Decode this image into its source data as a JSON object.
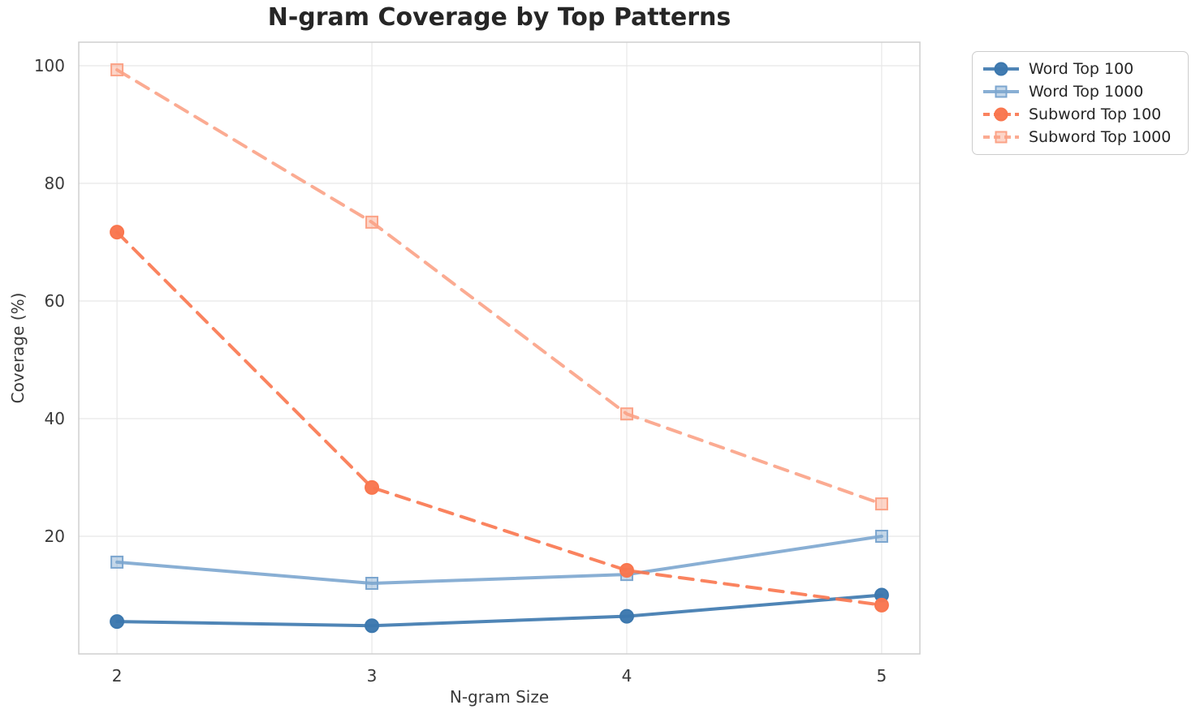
{
  "chart_data": {
    "type": "line",
    "title": "N-gram Coverage by Top Patterns",
    "xlabel": "N-gram Size",
    "ylabel": "Coverage (%)",
    "x": [
      2,
      3,
      4,
      5
    ],
    "x_tick_labels": [
      "2",
      "3",
      "4",
      "5"
    ],
    "y_ticks": [
      20,
      40,
      60,
      80,
      100
    ],
    "y_tick_labels": [
      "20",
      "40",
      "60",
      "80",
      "100"
    ],
    "xlim": [
      1.85,
      5.15
    ],
    "ylim": [
      0,
      104
    ],
    "grid": true,
    "legend_position": "outside-upper-right",
    "series": [
      {
        "name": "Word Top 100",
        "color": "#3C78AE",
        "marker": "circle",
        "linestyle": "solid",
        "values": [
          5.5,
          4.8,
          6.4,
          10.0
        ]
      },
      {
        "name": "Word Top 1000",
        "color": "#7CA6CF",
        "marker": "square",
        "linestyle": "solid",
        "values": [
          15.6,
          12.0,
          13.5,
          20.0
        ]
      },
      {
        "name": "Subword Top 100",
        "color": "#F9764E",
        "marker": "circle",
        "linestyle": "dashed",
        "values": [
          71.7,
          28.3,
          14.2,
          8.3
        ]
      },
      {
        "name": "Subword Top 1000",
        "color": "#FBA286",
        "marker": "square",
        "linestyle": "dashed",
        "values": [
          99.3,
          73.4,
          40.8,
          25.5
        ]
      }
    ],
    "colors": {
      "grid": "#e7e7e7",
      "spine": "#cfcfcf",
      "text": "#262626",
      "tick_text": "#3a3a3a"
    }
  }
}
